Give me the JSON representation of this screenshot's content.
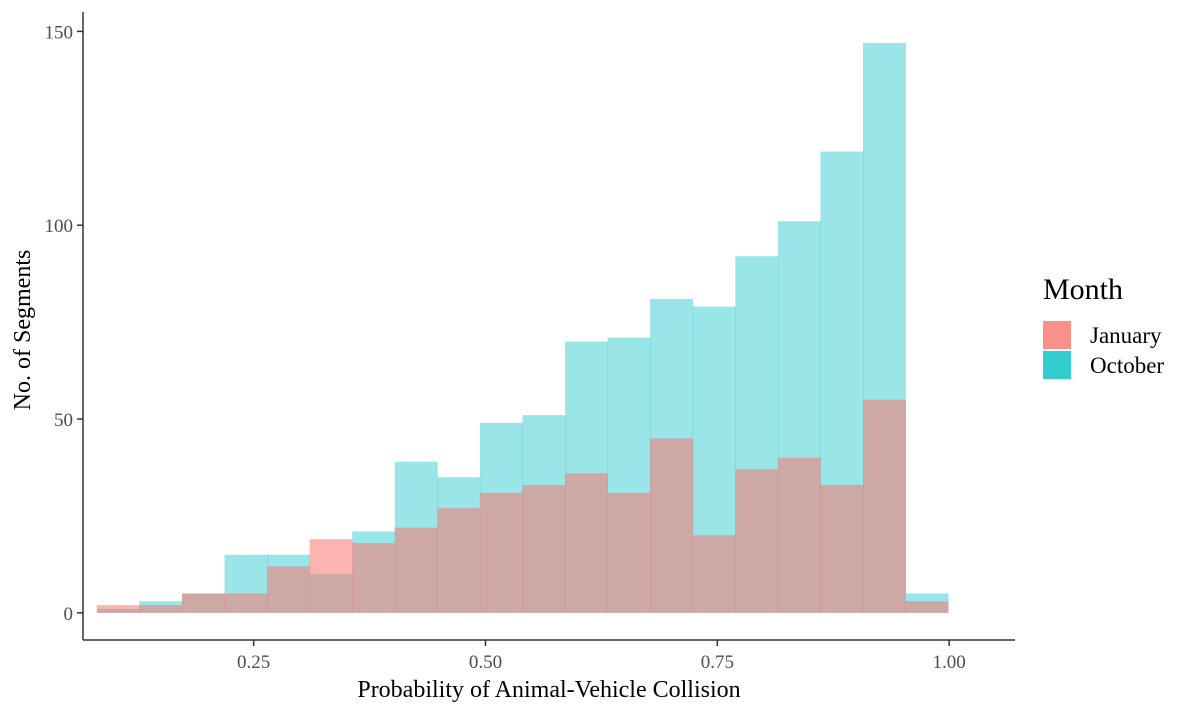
{
  "chart_data": {
    "type": "bar",
    "xlabel": "Probability of Animal-Vehicle Collision",
    "ylabel": "No. of Segments",
    "x_ticks": [
      0.25,
      0.5,
      0.75,
      1.0
    ],
    "x_tick_labels": [
      "0.25",
      "0.50",
      "0.75",
      "1.00"
    ],
    "y_ticks": [
      0,
      50,
      100,
      150
    ],
    "y_tick_labels": [
      "0",
      "50",
      "100",
      "150"
    ],
    "xlim": [
      0.066,
      1.071
    ],
    "ylim": [
      -7,
      155
    ],
    "bin_start": 0.0809,
    "bin_width": 0.0459,
    "grid": false,
    "legend": {
      "title": "Month",
      "placement": "right",
      "entries": [
        "January",
        "October"
      ]
    },
    "series": [
      {
        "name": "January",
        "color": "#F8766D",
        "values": [
          2,
          2,
          5,
          5,
          12,
          19,
          18,
          22,
          27,
          31,
          33,
          36,
          31,
          45,
          20,
          37,
          40,
          33,
          55,
          3
        ]
      },
      {
        "name": "October",
        "color": "#00BFC4",
        "values": [
          1,
          3,
          5,
          15,
          15,
          10,
          21,
          39,
          35,
          49,
          51,
          70,
          71,
          81,
          79,
          92,
          101,
          119,
          147,
          5
        ]
      }
    ]
  }
}
